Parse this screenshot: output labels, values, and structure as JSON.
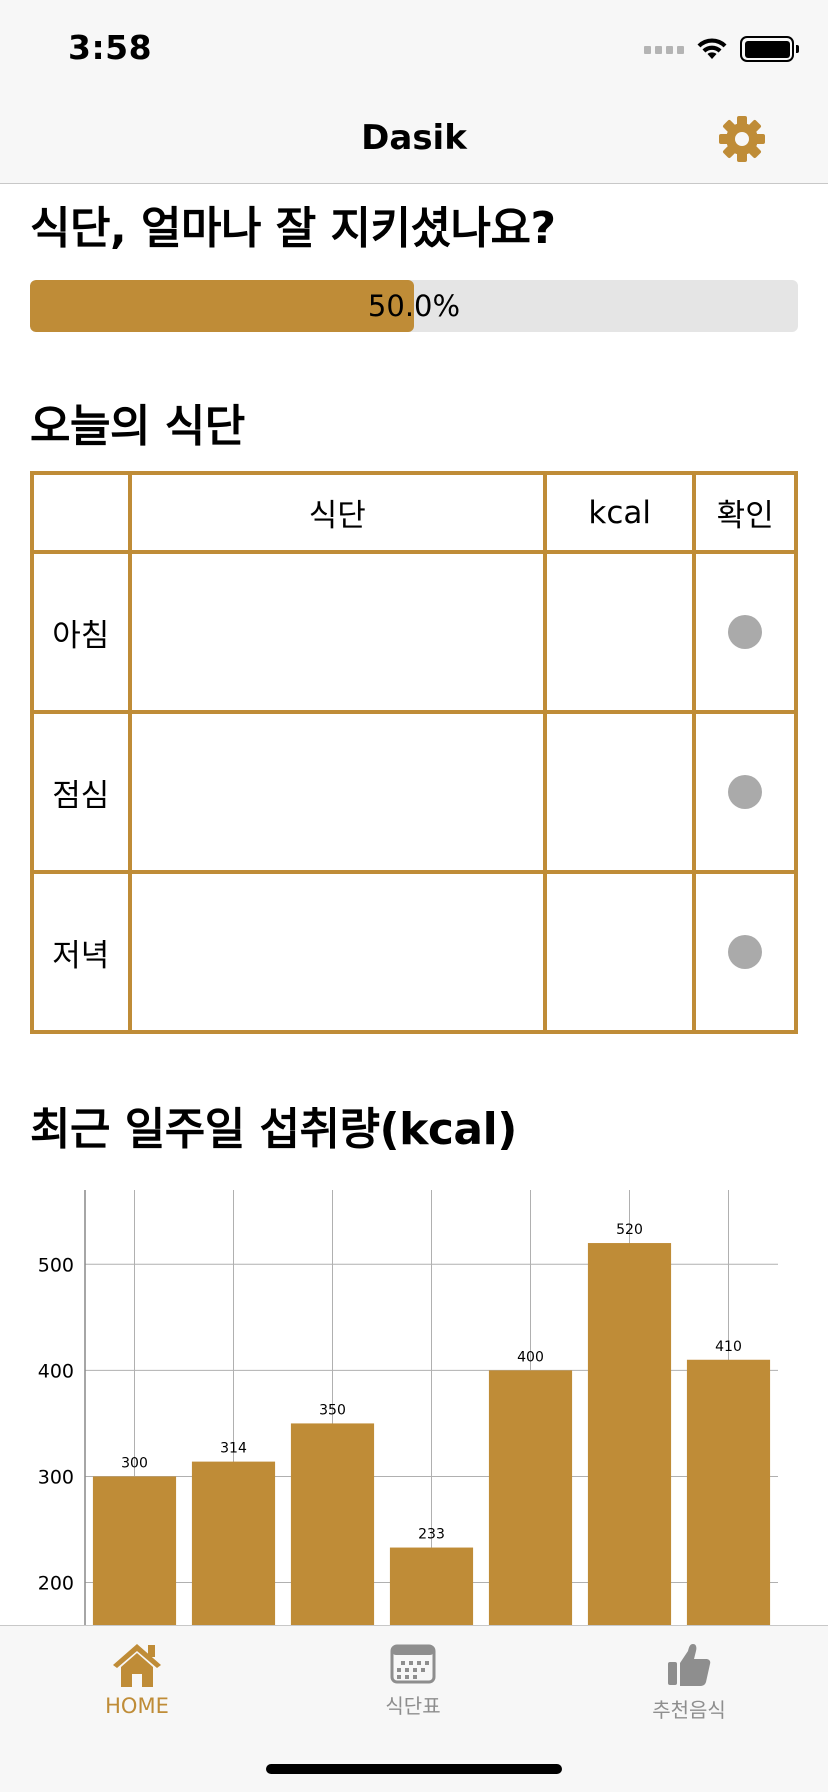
{
  "status": {
    "time": "3:58"
  },
  "nav": {
    "title": "Dasik",
    "settings_icon": "gear-icon"
  },
  "progress": {
    "title": "식단, 얼마나 잘 지키셨나요?",
    "value_percent": 50.0,
    "label": "50.0%"
  },
  "today": {
    "title": "오늘의 식단",
    "headers": [
      "",
      "식단",
      "kcal",
      "확인"
    ],
    "rows": [
      {
        "label": "아침",
        "menu": "",
        "kcal": "",
        "checked": false
      },
      {
        "label": "점심",
        "menu": "",
        "kcal": "",
        "checked": false
      },
      {
        "label": "저녁",
        "menu": "",
        "kcal": "",
        "checked": false
      }
    ]
  },
  "weekly": {
    "title": "최근 일주일 섭취량(kcal)"
  },
  "chart_data": {
    "type": "bar",
    "values": [
      300,
      314,
      350,
      233,
      400,
      520,
      410
    ],
    "data_labels": [
      "300",
      "314",
      "350",
      "233",
      "400",
      "520",
      "410"
    ],
    "y_ticks": [
      "200",
      "300",
      "400",
      "500"
    ],
    "y_visible_range": [
      160,
      570
    ],
    "grid": true,
    "color": "#bf8c37"
  },
  "tabs": [
    {
      "label": "HOME",
      "icon": "home-icon",
      "active": true
    },
    {
      "label": "식단표",
      "icon": "calendar-icon",
      "active": false
    },
    {
      "label": "추천음식",
      "icon": "thumbs-up-icon",
      "active": false
    }
  ],
  "colors": {
    "accent": "#bf8c37",
    "inactive": "#8e8e8e",
    "check_dot": "#aaaaaa",
    "track": "#e5e5e5"
  }
}
